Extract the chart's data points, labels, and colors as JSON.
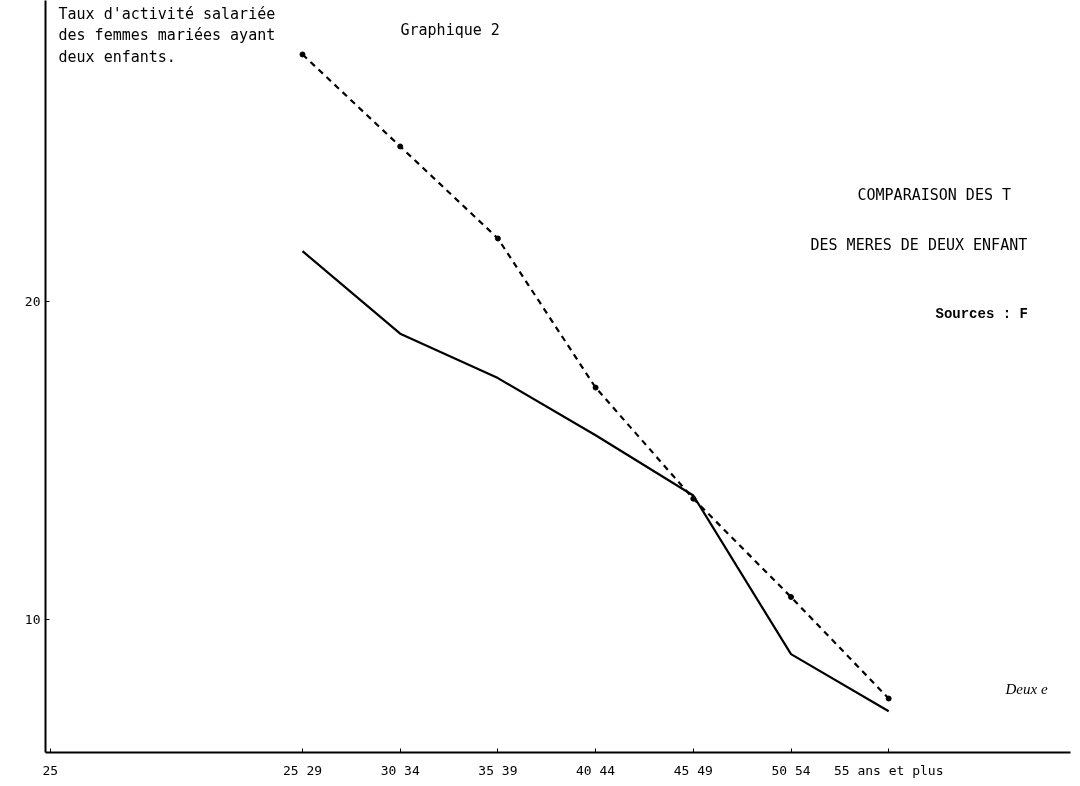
{
  "chart_data": {
    "type": "line",
    "title": "Graphique 2",
    "subtitle": "COMPARAISON DES T\nDES MERES DE DEUX ENFANT",
    "ylabel": "Taux d'activité salariée\ndes femmes mariées ayant\ndeux enfants.",
    "categories": [
      "25 29",
      "30 34",
      "35 39",
      "40 44",
      "45 49",
      "50 54",
      "55 ans et plus"
    ],
    "series": [
      {
        "color": "#000000",
        "line_style": "dashed",
        "marker": "circle",
        "values": [
          27.8,
          24.9,
          22.0,
          17.3,
          13.8,
          10.7,
          7.5
        ]
      },
      {
        "color": "#000000",
        "line_style": "solid",
        "marker": "none",
        "values": [
          21.6,
          19.0,
          17.6,
          15.8,
          13.9,
          8.9,
          7.1
        ]
      }
    ],
    "ylim": [
      5.8,
      29.5
    ],
    "yticks": [
      10,
      20
    ],
    "grid": false,
    "annotations": [
      "25",
      "Sources : F",
      "Deux e"
    ]
  }
}
